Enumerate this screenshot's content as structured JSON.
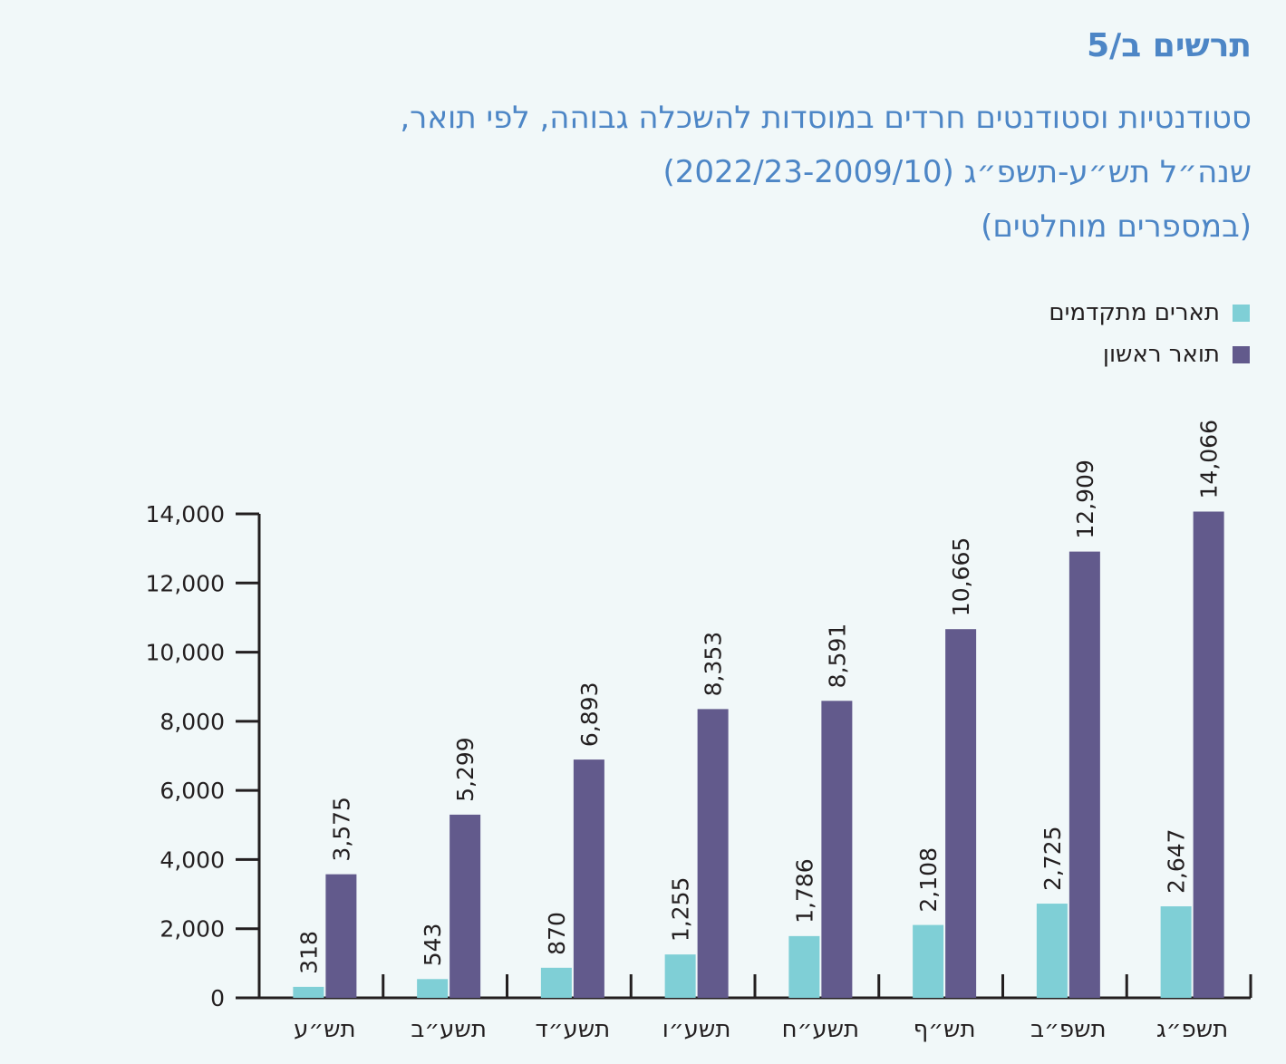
{
  "chart_label": "תרשים ב/5",
  "title_lines": [
    "סטודנטיות וסטודנטים חרדים במוסדות להשכלה גבוהה, לפי תואר,",
    "שנה״ל תש״ע-תשפ״ג (2022/23-2009/10)",
    "(במספרים מוחלטים)"
  ],
  "chart_data": {
    "type": "bar",
    "categories": [
      "תש״ע",
      "תשע״ב",
      "תשע״ד",
      "תשע״ו",
      "תשע״ח",
      "תש״ף",
      "תשפ״ב",
      "תשפ״ג"
    ],
    "series": [
      {
        "name": "תארים מתקדמים",
        "color": "#7fcfd6",
        "values": [
          318,
          543,
          870,
          1255,
          1786,
          2108,
          2725,
          2647
        ],
        "labels": [
          "318",
          "543",
          "870",
          "1,255",
          "1,786",
          "2,108",
          "2,725",
          "2,647"
        ]
      },
      {
        "name": "תואר ראשון",
        "color": "#625a8c",
        "values": [
          3575,
          5299,
          6893,
          8353,
          8591,
          10665,
          12909,
          14066
        ],
        "labels": [
          "3,575",
          "5,299",
          "6,893",
          "8,353",
          "8,591",
          "10,665",
          "12,909",
          "14,066"
        ]
      }
    ],
    "ylim": [
      0,
      14000
    ],
    "yticks": [
      0,
      2000,
      4000,
      6000,
      8000,
      10000,
      12000,
      14000
    ],
    "ytick_labels": [
      "0",
      "2,000",
      "4,000",
      "6,000",
      "8,000",
      "10,000",
      "12,000",
      "14,000"
    ],
    "legend": "top-right",
    "grid": false
  }
}
